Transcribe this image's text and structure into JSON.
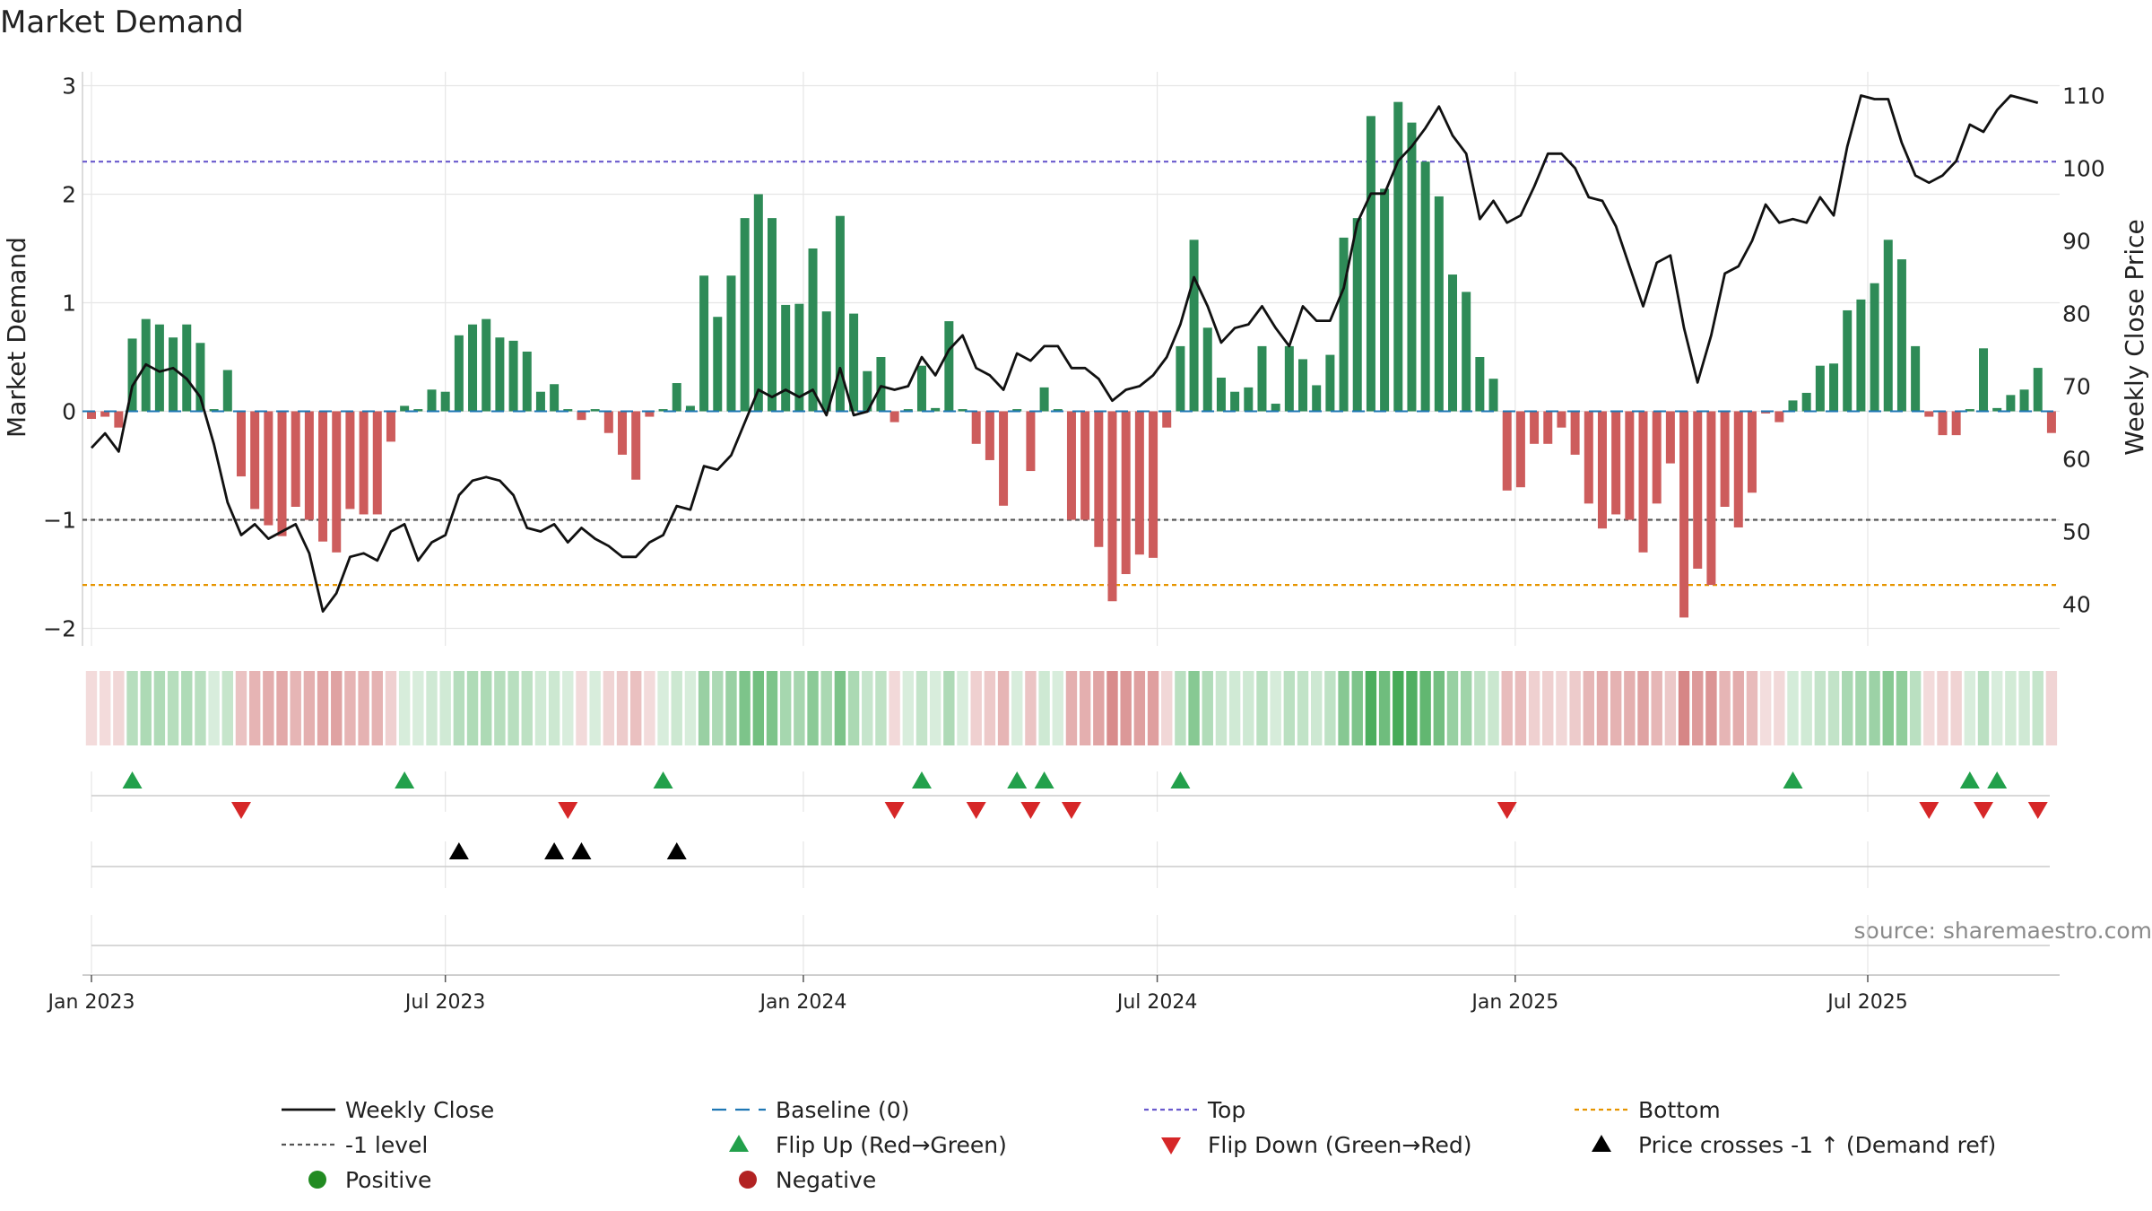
{
  "chart_data": {
    "type": "bar",
    "title": "Market Demand",
    "ylabel": "Market Demand",
    "y2label": "Weekly Close Price",
    "source": "source: sharemaestro.com",
    "ylim": [
      -2.2,
      3.1
    ],
    "y2lim": [
      35.5,
      112.5
    ],
    "yticks": [
      {
        "v": 3,
        "label": "3"
      },
      {
        "v": 2,
        "label": "2"
      },
      {
        "v": 1,
        "label": "1"
      },
      {
        "v": 0,
        "label": "0"
      },
      {
        "v": -1,
        "label": "−1"
      },
      {
        "v": -2,
        "label": "−2"
      }
    ],
    "y2ticks": [
      {
        "v": 110,
        "label": "110"
      },
      {
        "v": 100,
        "label": "100"
      },
      {
        "v": 90,
        "label": "90"
      },
      {
        "v": 80,
        "label": "80"
      },
      {
        "v": 70,
        "label": "70"
      },
      {
        "v": 60,
        "label": "60"
      },
      {
        "v": 50,
        "label": "50"
      },
      {
        "v": 40,
        "label": "40"
      }
    ],
    "xticks": [
      {
        "week": 0,
        "label": "Jan 2023"
      },
      {
        "week": 26,
        "label": "Jul 2023"
      },
      {
        "week": 52.3,
        "label": "Jan 2024"
      },
      {
        "week": 78.3,
        "label": "Jul 2024"
      },
      {
        "week": 104.6,
        "label": "Jan 2025"
      },
      {
        "week": 130.5,
        "label": "Jul 2025"
      }
    ],
    "reference_lines": {
      "top": 2.3,
      "minus_one": -1,
      "bottom": -1.6,
      "baseline": 0
    },
    "demand": [
      -0.07,
      -0.05,
      -0.15,
      0.67,
      0.85,
      0.8,
      0.68,
      0.8,
      0.63,
      0.02,
      0.38,
      -0.6,
      -0.9,
      -1.05,
      -1.15,
      -0.88,
      -1.0,
      -1.2,
      -1.3,
      -0.9,
      -0.95,
      -0.95,
      -0.28,
      0.05,
      0.02,
      0.2,
      0.18,
      0.7,
      0.8,
      0.85,
      0.68,
      0.65,
      0.55,
      0.18,
      0.25,
      0.02,
      -0.08,
      0.02,
      -0.2,
      -0.4,
      -0.63,
      -0.05,
      0.02,
      0.26,
      0.05,
      1.25,
      0.87,
      1.25,
      1.78,
      2.0,
      1.78,
      0.98,
      0.99,
      1.5,
      0.92,
      1.8,
      0.9,
      0.37,
      0.5,
      -0.1,
      0.02,
      0.42,
      0.03,
      0.83,
      0.02,
      -0.3,
      -0.45,
      -0.87,
      0.02,
      -0.55,
      0.22,
      0.02,
      -1.0,
      -1.0,
      -1.25,
      -1.75,
      -1.5,
      -1.32,
      -1.35,
      -0.15,
      0.6,
      1.58,
      0.77,
      0.31,
      0.18,
      0.22,
      0.6,
      0.07,
      0.6,
      0.48,
      0.24,
      0.52,
      1.6,
      1.78,
      2.72,
      2.05,
      2.85,
      2.66,
      2.3,
      1.98,
      1.26,
      1.1,
      0.5,
      0.3,
      -0.73,
      -0.7,
      -0.3,
      -0.3,
      -0.15,
      -0.4,
      -0.85,
      -1.08,
      -0.95,
      -1.0,
      -1.3,
      -0.85,
      -0.48,
      -1.9,
      -1.45,
      -1.6,
      -0.88,
      -1.07,
      -0.75,
      -0.02,
      -0.1,
      0.1,
      0.17,
      0.42,
      0.44,
      0.93,
      1.03,
      1.18,
      1.58,
      1.4,
      0.6,
      -0.05,
      -0.22,
      -0.22,
      0.02,
      0.58,
      0.03,
      0.15,
      0.2,
      0.4,
      -0.2
    ],
    "weekly_close": [
      61.5,
      63.5,
      61,
      70,
      73,
      72,
      72.5,
      71,
      68.5,
      62,
      54,
      49.5,
      51,
      49,
      50,
      51,
      47,
      39,
      41.5,
      46.5,
      47,
      46,
      50,
      51,
      46,
      48.5,
      49.5,
      55,
      57,
      57.5,
      57,
      55,
      50.5,
      50,
      51,
      48.5,
      50.5,
      49,
      48,
      46.5,
      46.5,
      48.5,
      49.5,
      53.5,
      53,
      59,
      58.5,
      60.5,
      65,
      69.5,
      68.5,
      69.5,
      68.5,
      69.5,
      66,
      72.5,
      66,
      66.5,
      70,
      69.5,
      70,
      74,
      71.5,
      75,
      77,
      72.5,
      71.5,
      69.5,
      74.5,
      73.5,
      75.5,
      75.5,
      72.5,
      72.5,
      71,
      68,
      69.5,
      70,
      71.5,
      74,
      78.5,
      85,
      81,
      76,
      78,
      78.5,
      81,
      78,
      75.5,
      81,
      79,
      79,
      83.5,
      92.5,
      96.5,
      96.5,
      101,
      103,
      105.5,
      108.5,
      104.5,
      102,
      93,
      95.5,
      92.5,
      93.5,
      97.5,
      102,
      102,
      100,
      96,
      95.5,
      92,
      86.5,
      81,
      87,
      88,
      78,
      70.5,
      77,
      85.5,
      86.5,
      90,
      95,
      92.5,
      93,
      92.5,
      96,
      93.5,
      103,
      110,
      109.5,
      109.5,
      103.5,
      99,
      98,
      99,
      101,
      106,
      105,
      108,
      110,
      109.5,
      109
    ],
    "flip_up_weeks": [
      3,
      23,
      42,
      61,
      68,
      70,
      80,
      125,
      138,
      140
    ],
    "flip_down_weeks": [
      11,
      35,
      59,
      65,
      69,
      72,
      104,
      135,
      139,
      143
    ],
    "price_cross_weeks": [
      27,
      34,
      36,
      43
    ],
    "legend": [
      {
        "key": "close",
        "label": "Weekly Close"
      },
      {
        "key": "baseline",
        "label": "Baseline (0)"
      },
      {
        "key": "top",
        "label": "Top"
      },
      {
        "key": "bottom",
        "label": "Bottom"
      },
      {
        "key": "minus_one",
        "label": "-1 level"
      },
      {
        "key": "flip_up",
        "label": "Flip Up (Red→Green)"
      },
      {
        "key": "flip_down",
        "label": "Flip Down (Green→Red)"
      },
      {
        "key": "price_cross",
        "label": "Price crosses -1 ↑ (Demand ref)"
      },
      {
        "key": "positive",
        "label": "Positive"
      },
      {
        "key": "negative",
        "label": "Negative"
      }
    ]
  },
  "colors": {
    "positive_bar": "#2e8b57",
    "negative_bar": "#cd5c5c",
    "close_line": "#111111",
    "baseline": "#1f77b4",
    "top_line": "#6a5acd",
    "minus_one_line": "#555555",
    "bottom_line": "#e69500",
    "flip_up": "#22a04b",
    "flip_down": "#d62728",
    "price_cross": "#000000",
    "positive_dot": "#228b22",
    "negative_dot": "#b22222",
    "heat_positive": "#2ea043",
    "heat_negative": "#c04545",
    "grid": "#e6e6e6",
    "track": "#cccccc",
    "source_text": "#8a8a8a"
  }
}
